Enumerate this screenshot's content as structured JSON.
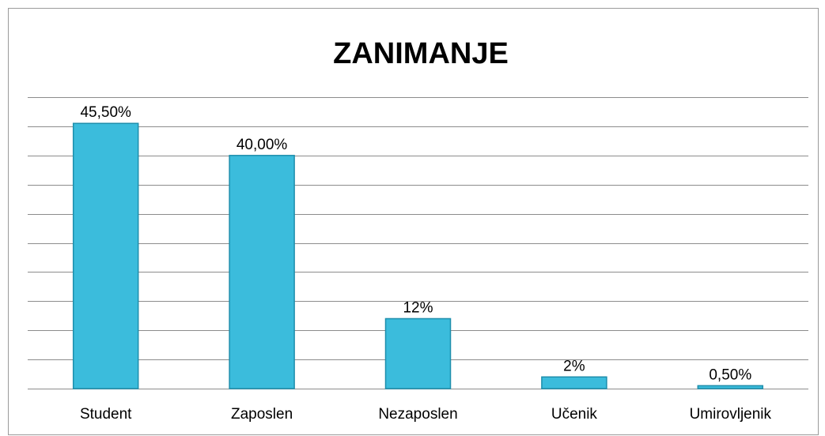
{
  "chart_data": {
    "type": "bar",
    "title": "ZANIMANJE",
    "categories": [
      "Student",
      "Zaposlen",
      "Nezaposlen",
      "Učenik",
      "Umirovljenik"
    ],
    "values": [
      45.5,
      40,
      12,
      2,
      0.5
    ],
    "value_labels": [
      "45,50%",
      "40,00%",
      "12%",
      "2%",
      "0,50%"
    ],
    "color": "#3bbcdc",
    "ylim": [
      0,
      50
    ],
    "yticks": [
      0,
      5,
      10,
      15,
      20,
      25,
      30,
      35,
      40,
      45,
      50
    ],
    "grid": true
  }
}
